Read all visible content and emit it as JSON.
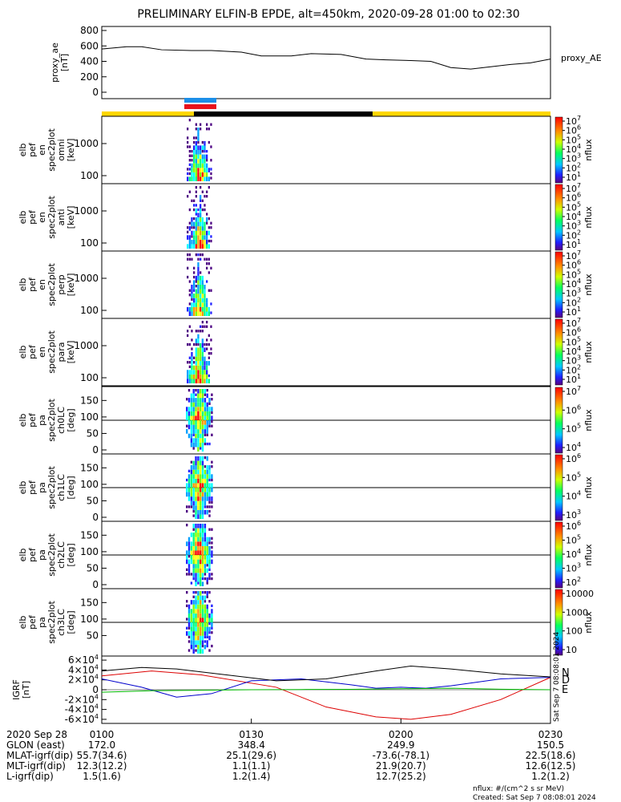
{
  "title": "PRELIMINARY ELFIN-B EPDE, alt=450km, 2020-09-28 01:00 to 02:30",
  "chart_data": [
    {
      "type": "line",
      "ylabel_lines": [
        "proxy_ae",
        "[nT]"
      ],
      "legend": "proxy_AE",
      "yticks": [
        "0",
        "200",
        "400",
        "600",
        "800"
      ],
      "ylim": [
        0,
        850
      ],
      "x": [
        0,
        5,
        8,
        12,
        18,
        22,
        28,
        32,
        38,
        42,
        48,
        53,
        57,
        62,
        66,
        70,
        74,
        78,
        82,
        86,
        90
      ],
      "values": [
        560,
        590,
        590,
        550,
        540,
        540,
        520,
        470,
        470,
        500,
        490,
        430,
        420,
        410,
        400,
        320,
        300,
        330,
        360,
        380,
        430
      ]
    },
    {
      "type": "heatmap",
      "panels": [
        {
          "ylabel_lines": [
            "elb",
            "pef",
            "en",
            "spec2plot",
            "omni",
            "[keV]"
          ],
          "yticks": [
            "100",
            "1000"
          ],
          "cb_ticks": [
            "10^1",
            "10^2",
            "10^3",
            "10^4",
            "10^5",
            "10^6",
            "10^7"
          ],
          "cb_label": "nflux"
        },
        {
          "ylabel_lines": [
            "elb",
            "pef",
            "en",
            "spec2plot",
            "anti",
            "[keV]"
          ],
          "yticks": [
            "100",
            "1000"
          ],
          "cb_ticks": [
            "10^1",
            "10^2",
            "10^3",
            "10^4",
            "10^5",
            "10^6",
            "10^7"
          ],
          "cb_label": "nflux"
        },
        {
          "ylabel_lines": [
            "elb",
            "pef",
            "en",
            "spec2plot",
            "perp",
            "[keV]"
          ],
          "yticks": [
            "100",
            "1000"
          ],
          "cb_ticks": [
            "10^1",
            "10^2",
            "10^3",
            "10^4",
            "10^5",
            "10^6",
            "10^7"
          ],
          "cb_label": "nflux"
        },
        {
          "ylabel_lines": [
            "elb",
            "pef",
            "en",
            "spec2plot",
            "para",
            "[keV]"
          ],
          "yticks": [
            "100",
            "1000"
          ],
          "cb_ticks": [
            "10^1",
            "10^2",
            "10^3",
            "10^4",
            "10^5",
            "10^6",
            "10^7"
          ],
          "cb_label": "nflux"
        },
        {
          "ylabel_lines": [
            "elb",
            "pef",
            "pa",
            "spec2plot",
            "ch0LC",
            "[deg]"
          ],
          "yticks": [
            "0",
            "50",
            "100",
            "150"
          ],
          "cb_ticks": [
            "10^4",
            "10^5",
            "10^6",
            "10^7"
          ],
          "cb_label": "nflux"
        },
        {
          "ylabel_lines": [
            "elb",
            "pef",
            "pa",
            "spec2plot",
            "ch1LC",
            "[deg]"
          ],
          "yticks": [
            "0",
            "50",
            "100",
            "150"
          ],
          "cb_ticks": [
            "10^3",
            "10^4",
            "10^5",
            "10^6"
          ],
          "cb_label": "nflux"
        },
        {
          "ylabel_lines": [
            "elb",
            "pef",
            "pa",
            "spec2plot",
            "ch2LC",
            "[deg]"
          ],
          "yticks": [
            "0",
            "50",
            "100",
            "150"
          ],
          "cb_ticks": [
            "10^2",
            "10^3",
            "10^4",
            "10^5",
            "10^6"
          ],
          "cb_label": "nflux"
        },
        {
          "ylabel_lines": [
            "elb",
            "pef",
            "pa",
            "spec2plot",
            "ch3LC",
            "[deg]"
          ],
          "yticks": [
            "50",
            "100",
            "150"
          ],
          "cb_ticks": [
            "10",
            "100",
            "1000",
            "10000"
          ],
          "cb_label": "nflux"
        }
      ]
    },
    {
      "type": "line",
      "ylabel_lines": [
        "IGRF",
        "[nT]"
      ],
      "yticks": [
        "-6×10^4",
        "-4×10^4",
        "-2×10^4",
        "0",
        "2×10^4",
        "4×10^4",
        "6×10^4"
      ],
      "ylim": [
        -65000,
        65000
      ],
      "legend": [
        "N",
        "D",
        "E"
      ],
      "series": [
        {
          "name": "N",
          "x": [
            0,
            10,
            20,
            35,
            45,
            55,
            62,
            70,
            80,
            90
          ],
          "values": [
            28000,
            38000,
            30000,
            5000,
            -35000,
            -55000,
            -60000,
            -50000,
            -20000,
            25000
          ]
        },
        {
          "name": "D",
          "x": [
            0,
            8,
            15,
            22,
            30,
            40,
            50,
            55,
            60,
            65,
            70,
            80,
            90
          ],
          "values": [
            22000,
            5000,
            -15000,
            -8000,
            18000,
            22000,
            10000,
            3000,
            5000,
            3000,
            8000,
            22000,
            25000
          ]
        },
        {
          "name": "E",
          "x": [
            0,
            10,
            20,
            30,
            40,
            50,
            60,
            70,
            80,
            90
          ],
          "values": [
            -5000,
            -2000,
            -1000,
            0,
            500,
            800,
            2000,
            3000,
            1000,
            0
          ]
        },
        {
          "name": "Black",
          "x": [
            0,
            8,
            15,
            25,
            35,
            45,
            55,
            62,
            70,
            80,
            90
          ],
          "values": [
            38000,
            45000,
            42000,
            30000,
            18000,
            22000,
            38000,
            48000,
            42000,
            32000,
            26000
          ]
        }
      ]
    }
  ],
  "bars": {
    "top_colors": [
      "#ffd700",
      "#000000",
      "#ffd700"
    ],
    "marker_colors": [
      "#1c8fe8",
      "#e8121c"
    ]
  },
  "xaxis": {
    "ticks": [
      "0100",
      "0130",
      "0200",
      "0230"
    ],
    "date_label": "2020 Sep 28",
    "rows": [
      {
        "label": "GLON (east)",
        "values": [
          "172.0",
          "348.4",
          "249.9",
          "150.5"
        ]
      },
      {
        "label": "MLAT-igrf(dip)",
        "values": [
          "55.7(34.6)",
          "25.1(29.6)",
          "-73.6(-78.1)",
          "22.5(18.6)"
        ]
      },
      {
        "label": "MLT-igrf(dip)",
        "values": [
          "12.3(12.2)",
          "1.1(1.1)",
          "21.9(20.7)",
          "12.6(12.5)"
        ]
      },
      {
        "label": "L-igrf(dip)",
        "values": [
          "1.5(1.6)",
          "1.2(1.4)",
          "12.7(25.2)",
          "1.2(1.2)"
        ]
      }
    ]
  },
  "footer": {
    "units": "nflux: #/(cm^2 s sr MeV)",
    "created": "Created: Sat Sep  7 08:08:01 2024"
  },
  "side_stamp": "Sat Sep  7 08:08:01 2024"
}
